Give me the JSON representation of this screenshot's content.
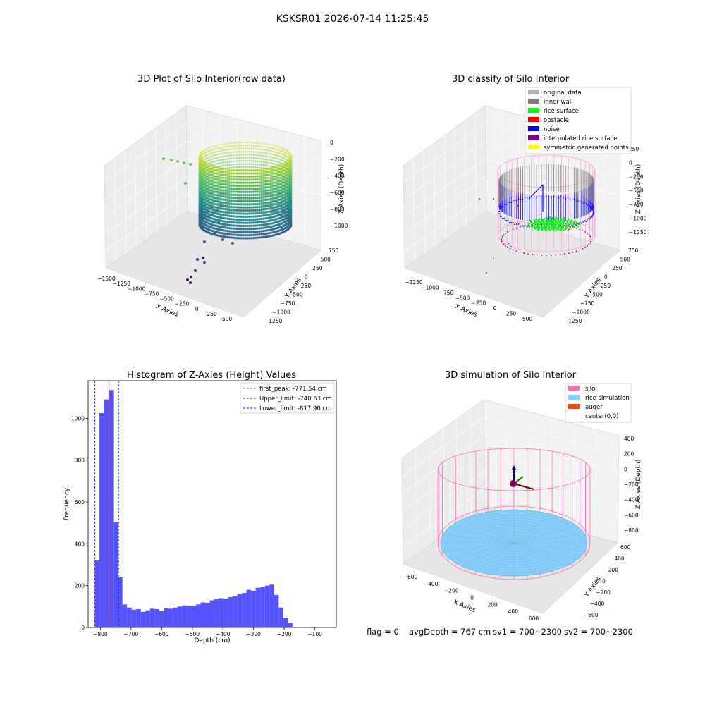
{
  "suptitle": "KSKSR01 2026-07-14 11:25:45",
  "status_line": {
    "flag": "flag = 0",
    "avg_depth": "avgDepth = 767 cm",
    "sv1": "sv1 = 700~2300",
    "sv2": "sv2 = 700~2300"
  },
  "colors": {
    "hist_bar": "#4a4aff",
    "first_peak": "#e05050",
    "limit_lines": "#2222cc",
    "silo": "#ff69b4",
    "rice_simulation": "#87cefa",
    "auger": "#ff4500",
    "original_data": "#b3b3b3",
    "inner_wall": "#808080",
    "rice_surface": "#00ff00",
    "obstacle": "#ff0000",
    "noise": "#0000ff",
    "interpolated_rice_surface": "#800080",
    "symmetric_generated_points": "#ffff00"
  },
  "chart_data": [
    {
      "type": "scatter",
      "title": "3D Plot of Silo Interior(row data)",
      "xlabel": "X Axies",
      "ylabel": "Y Axies",
      "zlabel": "Z Axies (Depth)",
      "xticks": [
        "-1500",
        "-1250",
        "-1000",
        "-750",
        "-500",
        "-250",
        "0",
        "250",
        "500"
      ],
      "yticks": [
        "-1250",
        "-1000",
        "-750",
        "-500",
        "-250",
        "0",
        "250",
        "500",
        "750"
      ],
      "zticks": [
        "0",
        "-200",
        "-400",
        "-600",
        "-800",
        "-1000"
      ],
      "colormap": "viridis",
      "description_points": "cylindrical wall of points, depth coloured"
    },
    {
      "type": "scatter",
      "title": "3D classify of Silo Interior",
      "xlabel": "X Axies",
      "ylabel": "Y Axies",
      "zlabel": "Z Axies (Depth)",
      "xticks": [
        "-1250",
        "-1000",
        "-750",
        "-500",
        "-250",
        "0",
        "250",
        "500"
      ],
      "yticks": [
        "-1250",
        "-1000",
        "-750",
        "-500",
        "-250",
        "0",
        "250",
        "500",
        "750"
      ],
      "zticks": [
        "250",
        "0",
        "-250",
        "-500",
        "-750",
        "-1000",
        "-1250"
      ],
      "legend_position": "top-right",
      "legend": [
        {
          "label": "original data",
          "color": "#b3b3b3"
        },
        {
          "label": "inner wall",
          "color": "#808080"
        },
        {
          "label": "rice surface",
          "color": "#00ff00"
        },
        {
          "label": "obstacle",
          "color": "#ff0000"
        },
        {
          "label": "noise",
          "color": "#0000ff"
        },
        {
          "label": "interpolated rice surface",
          "color": "#800080"
        },
        {
          "label": "symmetric generated points",
          "color": "#ffff00"
        }
      ]
    },
    {
      "type": "bar",
      "title": "Histogram of Z-Axies (Height) Values",
      "xlabel": "Depth (cm)",
      "ylabel": "Frequency",
      "xlim": [
        -840,
        -30
      ],
      "ylim": [
        0,
        1180
      ],
      "xticks": [
        -800,
        -700,
        -600,
        -500,
        -400,
        -300,
        -200,
        -100
      ],
      "xtick_labels": [
        "−800",
        "−700",
        "−600",
        "−500",
        "−400",
        "−300",
        "−200",
        "−100"
      ],
      "yticks": [
        0,
        200,
        400,
        600,
        800,
        1000
      ],
      "bin_start": -818,
      "bin_width": 15,
      "values": [
        320,
        1025,
        1090,
        1135,
        505,
        240,
        110,
        95,
        85,
        88,
        75,
        82,
        90,
        88,
        78,
        92,
        90,
        95,
        100,
        105,
        105,
        105,
        110,
        120,
        118,
        130,
        135,
        140,
        138,
        145,
        150,
        160,
        165,
        180,
        175,
        190,
        195,
        200,
        205,
        155,
        95,
        45,
        22
      ],
      "vlines": [
        {
          "label": "first_peak: -771.54 cm",
          "x": -771.54,
          "color": "#e05050"
        },
        {
          "label": "Upper_limit: -740.63 cm",
          "x": -740.63,
          "color": "#2222cc"
        },
        {
          "label": "Lower_limit: -817.90 cm",
          "x": -817.9,
          "color": "#2222cc"
        }
      ],
      "legend_position": "top-right"
    },
    {
      "type": "scatter",
      "title": "3D simulation of Silo Interior",
      "xlabel": "X Axies",
      "ylabel": "Y Axies",
      "zlabel": "Z Axies (Depth)",
      "xticks": [
        "-600",
        "-400",
        "-200",
        "0",
        "200",
        "400",
        "600"
      ],
      "yticks": [
        "-600",
        "-400",
        "-200",
        "0",
        "200",
        "400",
        "600"
      ],
      "zticks": [
        "400",
        "200",
        "0",
        "-200",
        "-400",
        "-600",
        "-800"
      ],
      "legend_position": "top-right",
      "legend": [
        {
          "label": "silo",
          "color": "#ff69b4"
        },
        {
          "label": "rice simulation",
          "color": "#87cefa"
        },
        {
          "label": "auger",
          "color": "#ff4500"
        },
        {
          "label": "center(0,0)",
          "color": "#ffffff"
        }
      ]
    }
  ]
}
